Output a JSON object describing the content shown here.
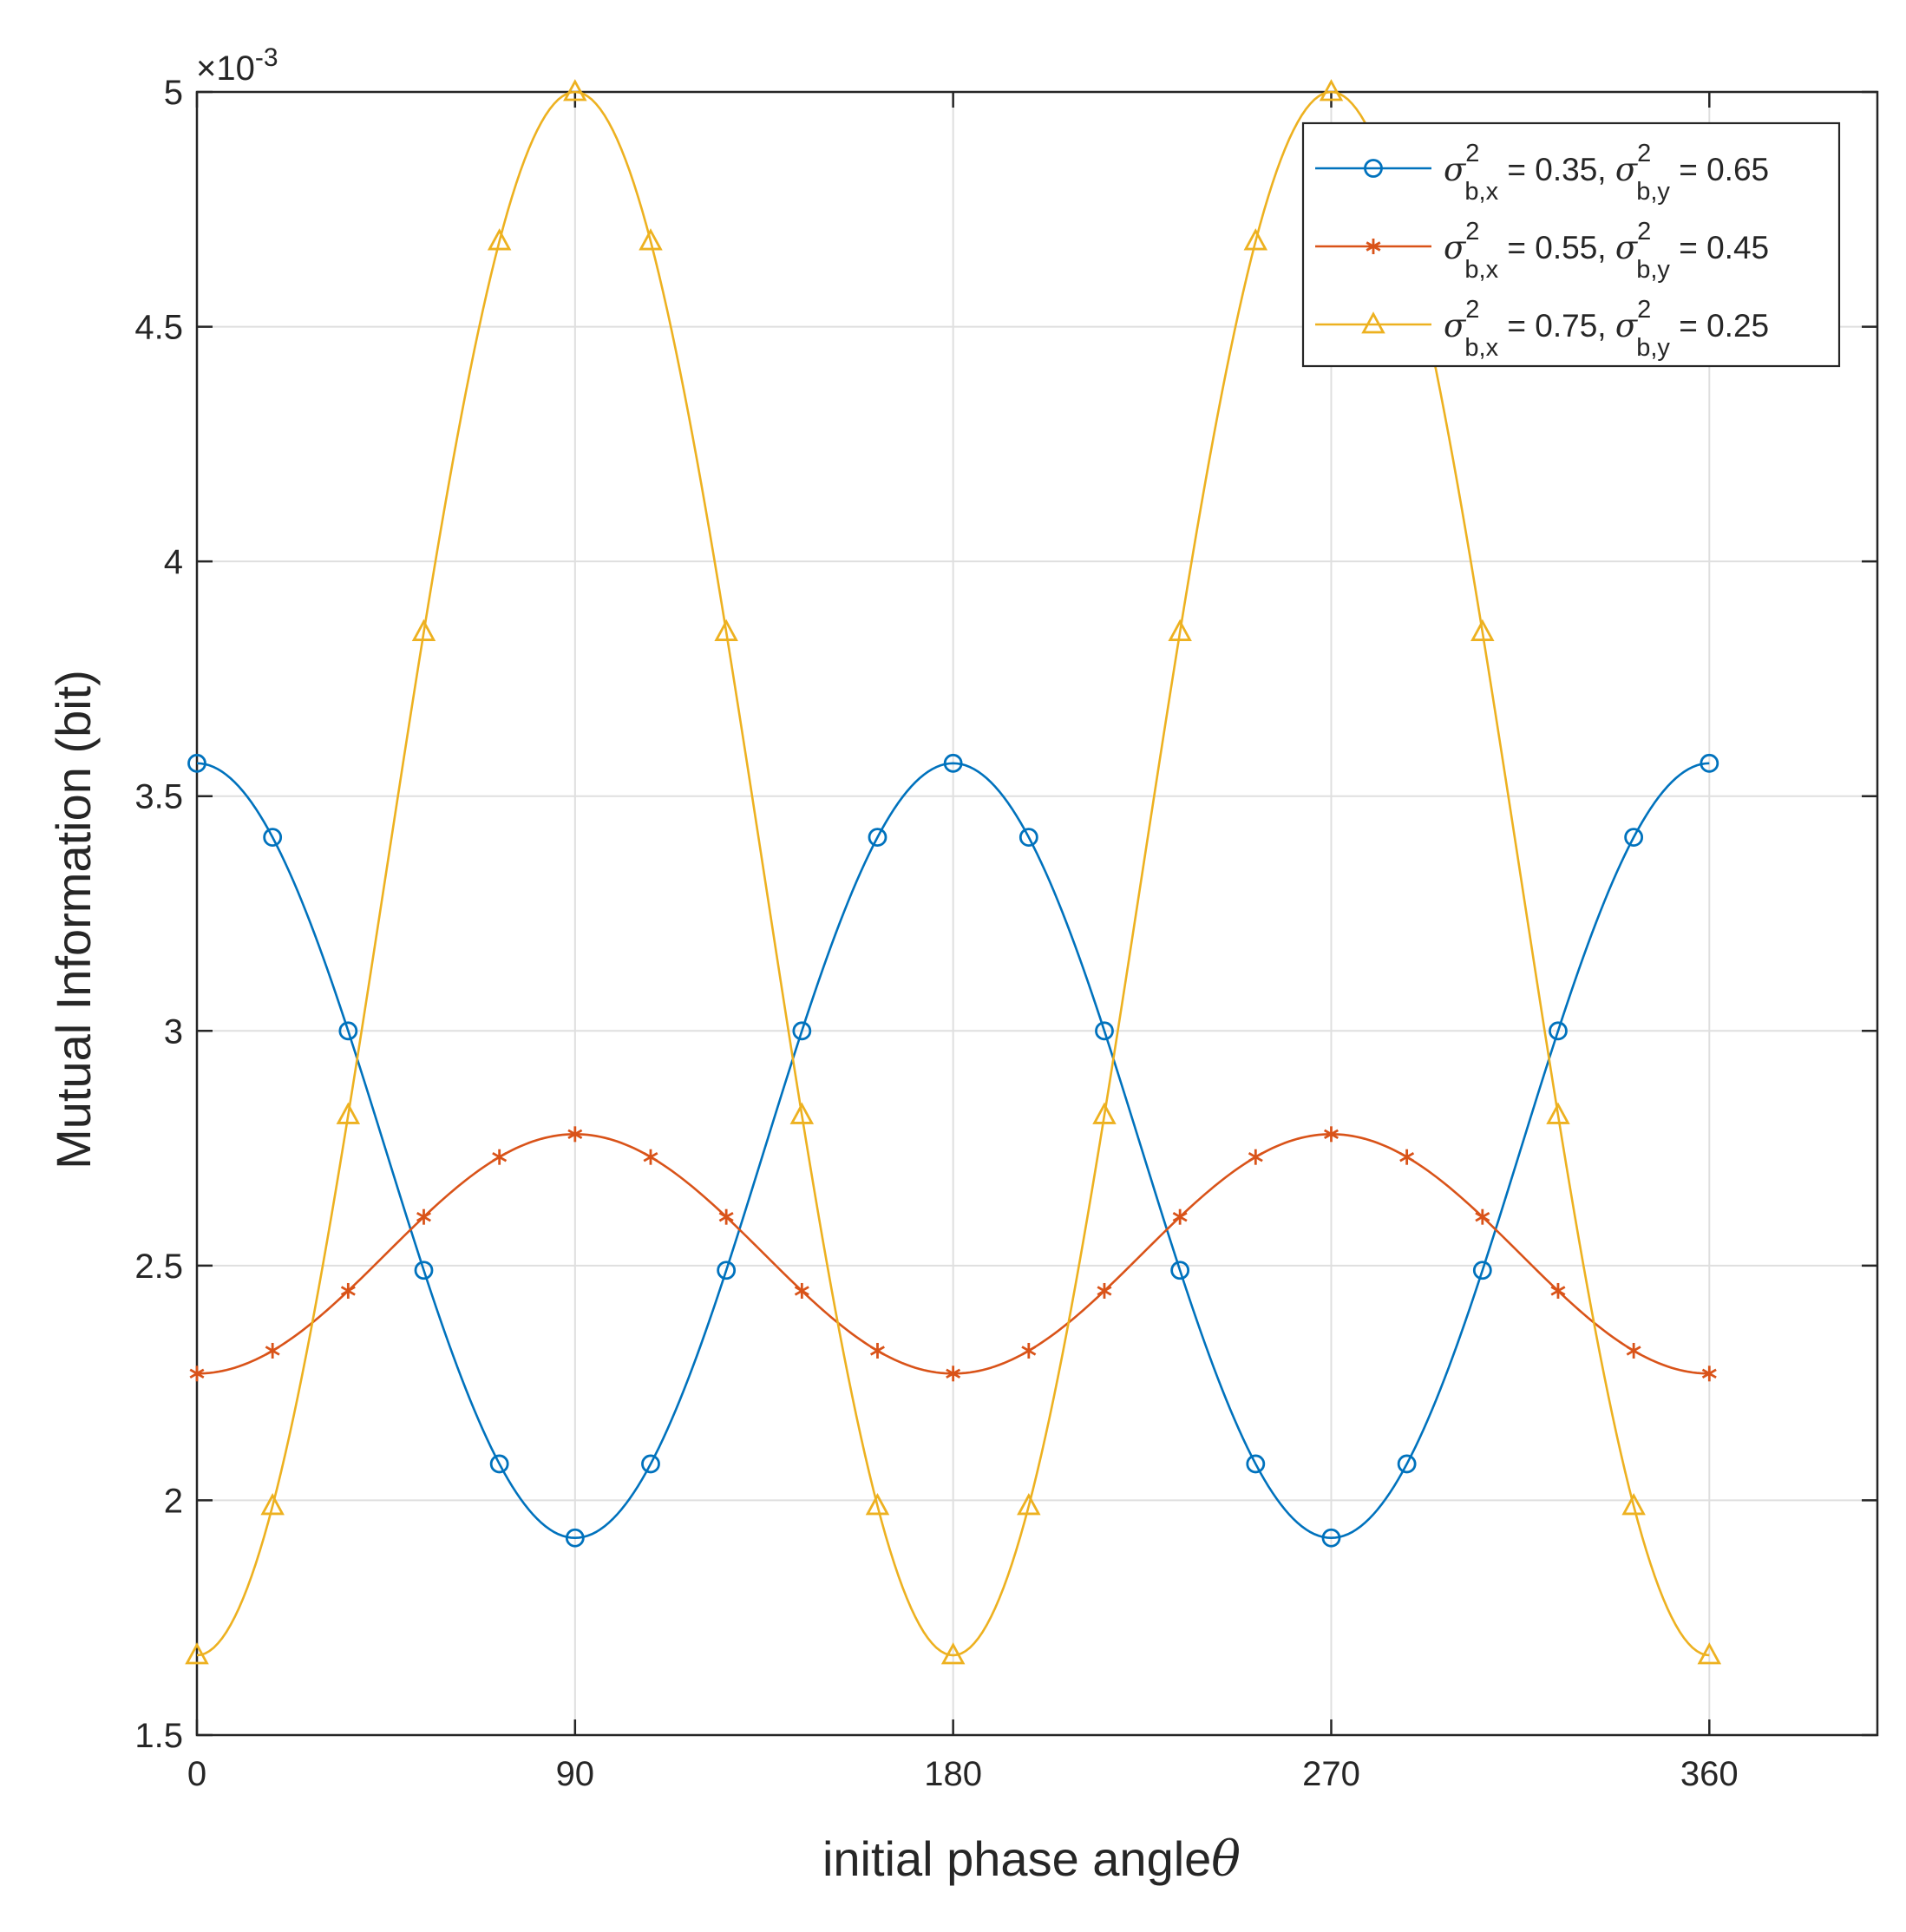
{
  "chart_data": {
    "type": "line",
    "xlabel": "initial phase angle",
    "xlabel_symbol": "θ",
    "ylabel": "Mutual Information (bit)",
    "y_exponent_prefix": "×10",
    "y_exponent_power": "-3",
    "xlim": [
      0,
      400
    ],
    "ylim": [
      1.5,
      5.0
    ],
    "x_ticks": [
      0,
      90,
      180,
      270,
      360
    ],
    "x_tick_labels": [
      "0",
      "90",
      "180",
      "270",
      "360"
    ],
    "y_ticks": [
      1.5,
      2,
      2.5,
      3,
      3.5,
      4,
      4.5,
      5
    ],
    "y_tick_labels": [
      "1.5",
      "2",
      "2.5",
      "3",
      "3.5",
      "4",
      "4.5",
      "5"
    ],
    "grid": true,
    "legend_position": "top-right",
    "x_range": [
      0,
      360
    ],
    "marker_x": [
      0,
      18,
      36,
      54,
      72,
      90,
      108,
      126,
      144,
      162,
      180,
      198,
      216,
      234,
      252,
      270,
      288,
      306,
      324,
      342,
      360
    ],
    "series": [
      {
        "sigma_bx": "0.35",
        "sigma_by": "0.65",
        "color": "#0072BD",
        "marker": "circle",
        "mean": 2.745,
        "amplitude": 0.825,
        "shape": "cos2"
      },
      {
        "sigma_bx": "0.55",
        "sigma_by": "0.45",
        "color": "#D95319",
        "marker": "asterisk",
        "mean": 2.525,
        "amplitude": -0.255,
        "shape": "cos2"
      },
      {
        "sigma_bx": "0.75",
        "sigma_by": "0.25",
        "color": "#EDB120",
        "marker": "triangle",
        "mean": 3.335,
        "amplitude": -1.665,
        "shape": "cos2"
      }
    ],
    "legend_entry_template": {
      "sigma_symbol": "σ",
      "superscript": "2",
      "sub_x": "b,x",
      "sub_y": "b,y",
      "equals": " = ",
      "separator": ", "
    }
  }
}
